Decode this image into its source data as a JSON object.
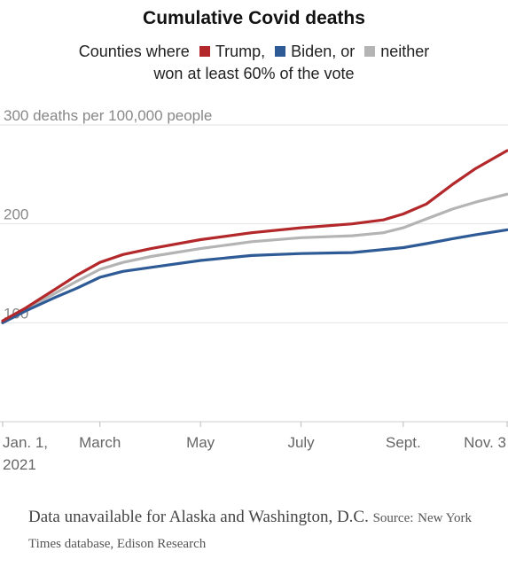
{
  "header": {
    "title": "Cumulative Covid deaths",
    "legend_prefix": "Counties where",
    "legend_line2": "won at least 60% of the vote"
  },
  "footer": {
    "note": "Data unavailable for Alaska and Washington, D.C.",
    "source_label": "Source:",
    "source_text": "New York Times database, Edison Research"
  },
  "chart_data": {
    "type": "line",
    "title": "Cumulative Covid deaths",
    "ylabel": "deaths per 100,000 people",
    "ylim": [
      0,
      300
    ],
    "yticks": [
      {
        "value": 100,
        "label": "100"
      },
      {
        "value": 200,
        "label": "200"
      },
      {
        "value": 300,
        "label": "300 deaths per 100,000 people"
      }
    ],
    "xticks": [
      {
        "date": "2021-01-01",
        "label": "Jan. 1,",
        "label2": "2021"
      },
      {
        "date": "2021-03-01",
        "label": "March"
      },
      {
        "date": "2021-05-01",
        "label": "May"
      },
      {
        "date": "2021-07-01",
        "label": "July"
      },
      {
        "date": "2021-09-01",
        "label": "Sept."
      },
      {
        "date": "2021-11-03",
        "label": "Nov. 3"
      }
    ],
    "xlim": [
      "2021-01-01",
      "2021-11-03"
    ],
    "grid": true,
    "series": [
      {
        "name": "Trump,",
        "color": "#b2282b",
        "points": [
          [
            "2021-01-01",
            102
          ],
          [
            "2021-01-15",
            115
          ],
          [
            "2021-02-01",
            133
          ],
          [
            "2021-02-15",
            148
          ],
          [
            "2021-03-01",
            161
          ],
          [
            "2021-03-15",
            169
          ],
          [
            "2021-04-01",
            175
          ],
          [
            "2021-05-01",
            184
          ],
          [
            "2021-06-01",
            191
          ],
          [
            "2021-07-01",
            196
          ],
          [
            "2021-08-01",
            200
          ],
          [
            "2021-08-20",
            204
          ],
          [
            "2021-09-01",
            210
          ],
          [
            "2021-09-15",
            220
          ],
          [
            "2021-10-01",
            240
          ],
          [
            "2021-10-15",
            256
          ],
          [
            "2021-11-03",
            274
          ]
        ]
      },
      {
        "name": "Biden, or",
        "color": "#2e5b95",
        "points": [
          [
            "2021-01-01",
            100
          ],
          [
            "2021-01-15",
            112
          ],
          [
            "2021-02-01",
            125
          ],
          [
            "2021-02-15",
            135
          ],
          [
            "2021-03-01",
            146
          ],
          [
            "2021-03-15",
            152
          ],
          [
            "2021-04-01",
            156
          ],
          [
            "2021-05-01",
            163
          ],
          [
            "2021-06-01",
            168
          ],
          [
            "2021-07-01",
            170
          ],
          [
            "2021-08-01",
            171
          ],
          [
            "2021-09-01",
            176
          ],
          [
            "2021-09-15",
            180
          ],
          [
            "2021-10-01",
            185
          ],
          [
            "2021-10-15",
            189
          ],
          [
            "2021-11-03",
            194
          ]
        ]
      },
      {
        "name": "neither",
        "color": "#b4b4b4",
        "points": [
          [
            "2021-01-01",
            101
          ],
          [
            "2021-01-15",
            114
          ],
          [
            "2021-02-01",
            129
          ],
          [
            "2021-02-15",
            142
          ],
          [
            "2021-03-01",
            154
          ],
          [
            "2021-03-15",
            161
          ],
          [
            "2021-04-01",
            167
          ],
          [
            "2021-05-01",
            175
          ],
          [
            "2021-06-01",
            182
          ],
          [
            "2021-07-01",
            186
          ],
          [
            "2021-08-01",
            188
          ],
          [
            "2021-08-20",
            191
          ],
          [
            "2021-09-01",
            196
          ],
          [
            "2021-09-15",
            205
          ],
          [
            "2021-10-01",
            215
          ],
          [
            "2021-10-15",
            222
          ],
          [
            "2021-11-03",
            230
          ]
        ]
      }
    ]
  }
}
